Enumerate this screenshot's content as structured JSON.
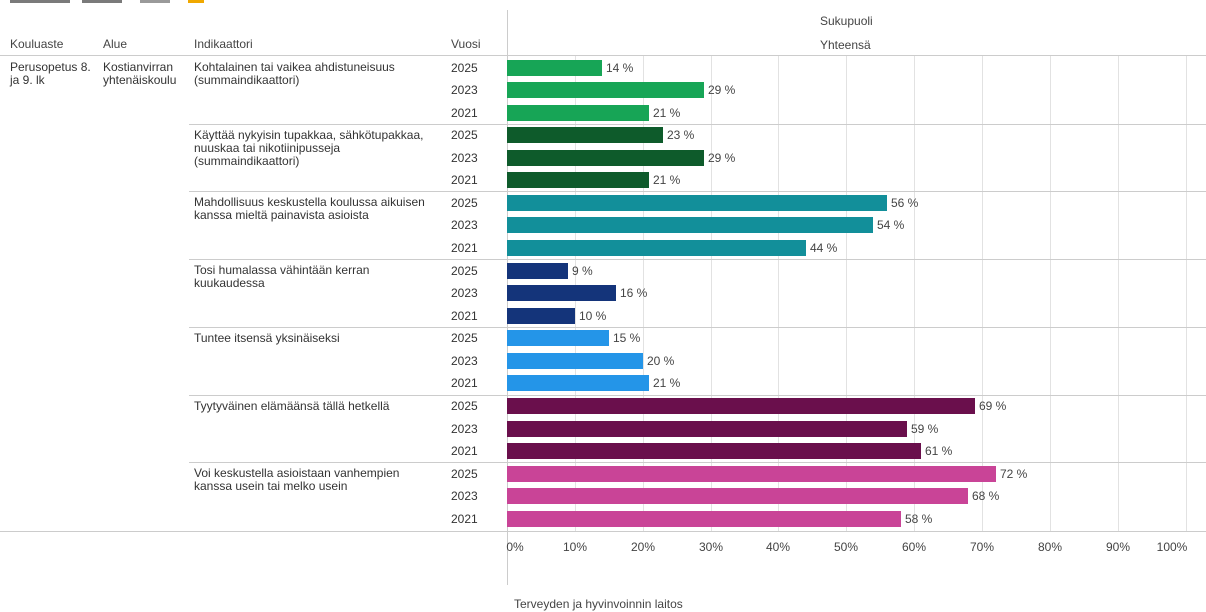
{
  "header": {
    "col_level": "Kouluaste",
    "col_area": "Alue",
    "col_indicator": "Indikaattori",
    "col_year": "Vuosi",
    "group_title": "Sukupuoli",
    "group_value": "Yhteensä"
  },
  "row_labels": {
    "level": "Perusopetus 8. ja 9. lk",
    "area": "Kostianvirran yhtenäiskoulu"
  },
  "indicators": [
    "Kohtalainen tai vaikea ahdistuneisuus (summaindikaattori)",
    "Käyttää nykyisin tupakkaa, sähkötupakkaa, nuuskaa tai nikotiinipusseja (summaindikaattori)",
    "Mahdollisuus keskustella koulussa aikuisen kanssa mieltä painavista asioista",
    "Tosi humalassa vähintään kerran kuukaudessa",
    "Tuntee itsensä yksinäiseksi",
    "Tyytyväinen elämäänsä tällä hetkellä",
    "Voi keskustella asioistaan vanhempien kanssa usein tai melko usein"
  ],
  "colors": [
    "#17a556",
    "#0e5b2b",
    "#128f9a",
    "#14347a",
    "#2495e8",
    "#6a0f4c",
    "#c94497"
  ],
  "source": "Terveyden ja hyvinvoinnin laitos",
  "chart_data": {
    "type": "bar",
    "orientation": "horizontal",
    "years": [
      "2025",
      "2023",
      "2021"
    ],
    "series": [
      {
        "values": [
          14,
          29,
          21
        ],
        "labels": [
          "14 %",
          "29 %",
          "21 %"
        ]
      },
      {
        "values": [
          23,
          29,
          21
        ],
        "labels": [
          "23 %",
          "29 %",
          "21 %"
        ]
      },
      {
        "values": [
          56,
          54,
          44
        ],
        "labels": [
          "56 %",
          "54 %",
          "44 %"
        ]
      },
      {
        "values": [
          9,
          16,
          10
        ],
        "labels": [
          "9 %",
          "16 %",
          "10 %"
        ]
      },
      {
        "values": [
          15,
          20,
          21
        ],
        "labels": [
          "15 %",
          "20 %",
          "21 %"
        ]
      },
      {
        "values": [
          69,
          59,
          61
        ],
        "labels": [
          "69 %",
          "59 %",
          "61 %"
        ]
      },
      {
        "values": [
          72,
          68,
          58
        ],
        "labels": [
          "72 %",
          "68 %",
          "58 %"
        ]
      }
    ],
    "xlim": [
      0,
      100
    ],
    "xticks": [
      0,
      10,
      20,
      30,
      40,
      50,
      60,
      70,
      80,
      90,
      100
    ],
    "xtick_labels": [
      "0%",
      "10%",
      "20%",
      "30%",
      "40%",
      "50%",
      "60%",
      "70%",
      "80%",
      "90%",
      "100%"
    ],
    "grid": true
  }
}
